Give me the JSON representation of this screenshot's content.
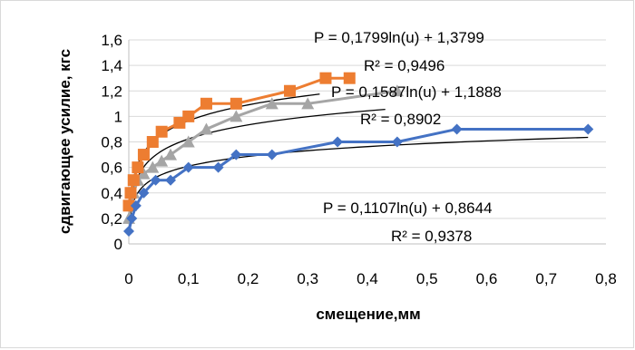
{
  "chart_data": {
    "type": "scatter",
    "title": "",
    "xlabel": "смещение,мм",
    "ylabel": "сдвигающее усилие, кгс",
    "xlim": [
      0,
      0.8
    ],
    "ylim": [
      0,
      1.6
    ],
    "x_ticks": [
      "0",
      "0,1",
      "0,2",
      "0,3",
      "0,4",
      "0,5",
      "0,6",
      "0,7",
      "0,8"
    ],
    "y_ticks": [
      "0",
      "0,2",
      "0,4",
      "0,6",
      "0,8",
      "1",
      "1,2",
      "1,4",
      "1,6"
    ],
    "grid": "horizontal",
    "legend": "none",
    "series": [
      {
        "color": "#ED7D31",
        "marker": "square",
        "x": [
          0,
          0.003,
          0.008,
          0.015,
          0.025,
          0.04,
          0.055,
          0.085,
          0.1,
          0.13,
          0.18,
          0.27,
          0.33,
          0.37
        ],
        "y": [
          0.3,
          0.4,
          0.5,
          0.6,
          0.7,
          0.8,
          0.88,
          0.95,
          1.0,
          1.1,
          1.1,
          1.2,
          1.3,
          1.3
        ],
        "trendline": {
          "a": 0.1799,
          "b": 1.3799,
          "x_range": [
            0.002,
            0.32
          ]
        },
        "equation": "P = 0,1799ln(u) + 1,3799",
        "r2": "R² = 0,9496"
      },
      {
        "color": "#A5A5A5",
        "marker": "triangle",
        "x": [
          0,
          0.003,
          0.008,
          0.015,
          0.025,
          0.04,
          0.055,
          0.07,
          0.1,
          0.13,
          0.18,
          0.24,
          0.3,
          0.45
        ],
        "y": [
          0.2,
          0.3,
          0.4,
          0.5,
          0.55,
          0.6,
          0.65,
          0.7,
          0.8,
          0.9,
          1.0,
          1.1,
          1.1,
          1.2
        ],
        "trendline": {
          "a": 0.1587,
          "b": 1.1888,
          "x_range": [
            0.002,
            0.43
          ]
        },
        "equation": "P = 0,1587ln(u) + 1,1888",
        "r2": "R² = 0,8902"
      },
      {
        "color": "#4472C4",
        "marker": "diamond",
        "x": [
          0,
          0.005,
          0.012,
          0.025,
          0.045,
          0.07,
          0.1,
          0.15,
          0.18,
          0.24,
          0.35,
          0.45,
          0.55,
          0.77
        ],
        "y": [
          0.1,
          0.2,
          0.3,
          0.4,
          0.5,
          0.5,
          0.6,
          0.6,
          0.7,
          0.7,
          0.8,
          0.8,
          0.9,
          0.9
        ],
        "trendline": {
          "a": 0.1107,
          "b": 0.8644,
          "x_range": [
            0.002,
            0.77
          ]
        },
        "equation": "P = 0,1107ln(u) + 0,8644",
        "r2": "R² = 0,9378"
      }
    ]
  }
}
